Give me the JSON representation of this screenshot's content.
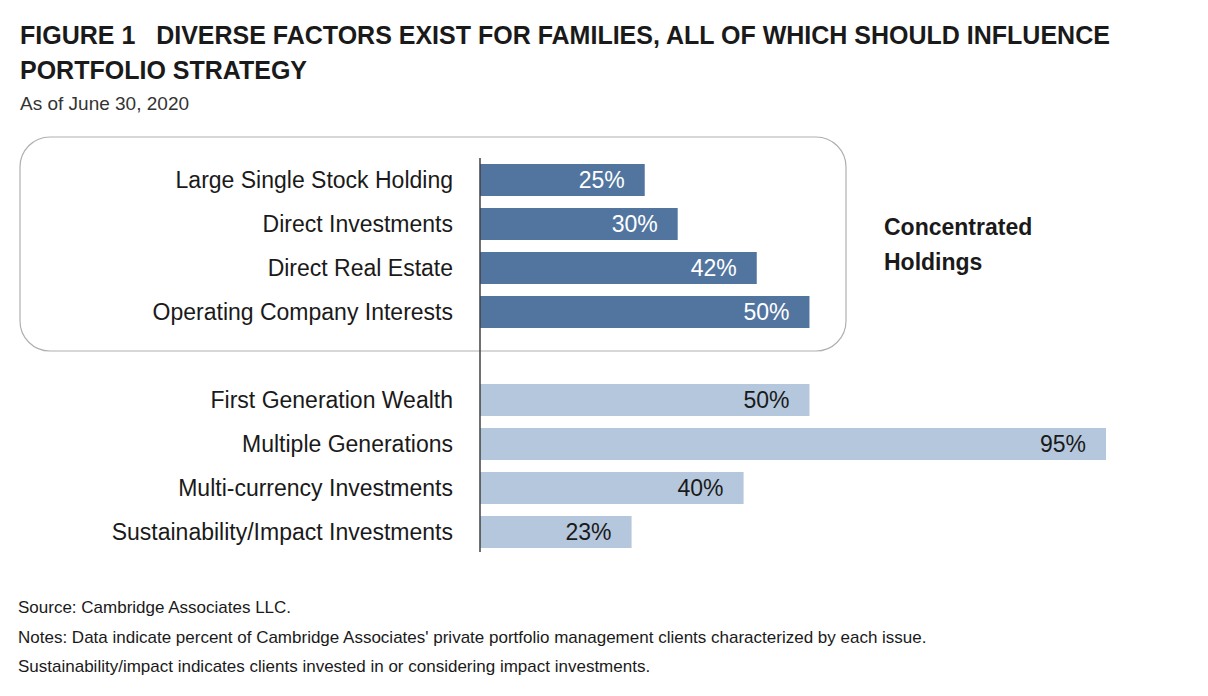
{
  "chart_data": {
    "type": "bar",
    "orientation": "horizontal",
    "title": "FIGURE 1   DIVERSE FACTORS EXIST FOR FAMILIES, ALL OF WHICH SHOULD INFLUENCE PORTFOLIO STRATEGY",
    "subtitle": "As of June 30, 2020",
    "categories": [
      "Large Single Stock Holding",
      "Direct Investments",
      "Direct Real Estate",
      "Operating Company Interests",
      "First Generation Wealth",
      "Multiple Generations",
      "Multi-currency Investments",
      "Sustainability/Impact Investments"
    ],
    "values": [
      25,
      30,
      42,
      50,
      50,
      95,
      40,
      23
    ],
    "value_labels": [
      "25%",
      "30%",
      "42%",
      "50%",
      "50%",
      "95%",
      "40%",
      "23%"
    ],
    "colors": [
      "#52759f",
      "#52759f",
      "#52759f",
      "#52759f",
      "#b5c7dc",
      "#b5c7dc",
      "#b5c7dc",
      "#b5c7dc"
    ],
    "data_labels": true,
    "tick_labels": "y",
    "grid": false,
    "annotations": [
      {
        "text": "Concentrated Holdings",
        "categories": [
          "Large Single Stock Holding",
          "Direct Investments",
          "Direct Real Estate",
          "Operating Company Interests"
        ]
      }
    ],
    "source": "Source: Cambridge Associates LLC.",
    "notes": [
      "Notes: Data indicate percent of Cambridge Associates' private portfolio management clients characterized by each issue.",
      "Sustainability/impact indicates clients invested in or considering impact investments."
    ]
  }
}
